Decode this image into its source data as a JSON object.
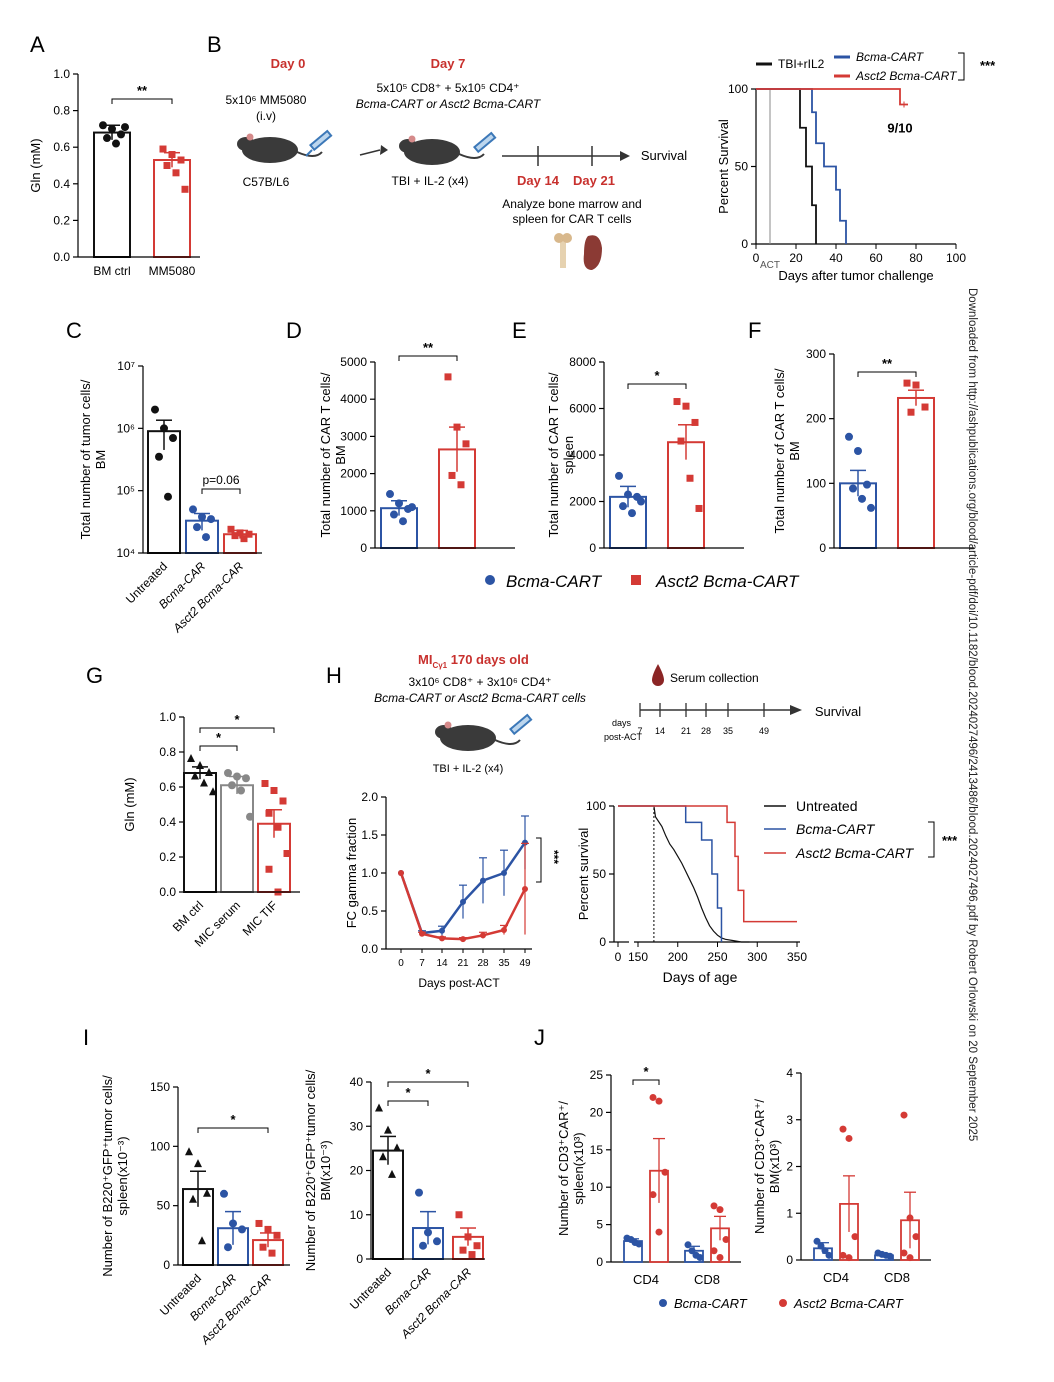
{
  "colors": {
    "black": "#111111",
    "blue": "#2c54a4",
    "red": "#d43a35",
    "grey": "#888888"
  },
  "panels": {
    "A": "A",
    "B": "B",
    "C": "C",
    "D": "D",
    "E": "E",
    "F": "F",
    "G": "G",
    "H": "H",
    "I": "I",
    "J": "J"
  },
  "side_note": "Downloaded from http://ashpublications.org/blood/article-pdf/doi/10.1182/blood.2024027496/2413486/blood.2024027496.pdf by Robert Orlowski on 20 September 2025",
  "schematic_B": {
    "day0": "Day 0",
    "day0_dose": "5x10⁶ MM5080",
    "day0_route": "(i.v)",
    "strain": "C57B/L6",
    "day7": "Day 7",
    "day7_line1": "5x10⁵ CD8⁺ + 5x10⁵ CD4⁺",
    "day7_line2": "Bcma-CART or Asct2 Bcma-CART",
    "treatment": "TBI + IL-2 (x4)",
    "day14": "Day 14",
    "day21": "Day 21",
    "survival": "Survival",
    "analyze1": "Analyze bone marrow and",
    "analyze2": "spleen for CAR T cells"
  },
  "schematic_H": {
    "title_main": "MI",
    "title_sub": "Cγ1",
    "title_rest": " 170 days old",
    "line1": "3x10⁶ CD8⁺ + 3x10⁶ CD4⁺",
    "line2": "Bcma-CART or Asct2 Bcma-CART cells",
    "treatment": "TBI + IL-2 (x4)",
    "serum": "Serum collection",
    "days_label1": "days",
    "days_label2": "post-ACT",
    "timeline_days": [
      "7",
      "14",
      "21",
      "28",
      "35",
      "49"
    ],
    "survival": "Survival"
  },
  "legend_CDEF": [
    "Bcma-CART",
    "Asct2 Bcma-CART"
  ],
  "legend_J": [
    "Bcma-CART",
    "Asct2 Bcma-CART"
  ],
  "chart_data": [
    {
      "id": "A",
      "type": "bar",
      "categories": [
        "BM ctrl",
        "MM5080"
      ],
      "values": [
        0.68,
        0.53
      ],
      "ylabel": "Gln (mM)",
      "ylim": [
        0,
        1.0
      ],
      "yticks": [
        "0.0",
        "0.2",
        "0.4",
        "0.6",
        "0.8",
        "1.0"
      ],
      "errors": [
        0.04,
        0.04
      ],
      "points": [
        [
          0.72,
          0.7,
          0.67,
          0.65,
          0.62,
          0.71
        ],
        [
          0.59,
          0.56,
          0.53,
          0.5,
          0.46,
          0.37
        ]
      ],
      "annotations": [
        "**"
      ]
    },
    {
      "id": "B",
      "type": "line",
      "title": "",
      "xlabel": "Days after tumor challenge",
      "ylabel": "Percent Survival",
      "xlim": [
        0,
        100
      ],
      "ylim": [
        0,
        100
      ],
      "xticks": [
        "0",
        "20",
        "40",
        "60",
        "80",
        "100"
      ],
      "yticks": [
        "0",
        "50",
        "100"
      ],
      "act_label": "ACT",
      "series": [
        {
          "name": "TBI+rIL2",
          "x": [
            0,
            22,
            22,
            25,
            25,
            28,
            28,
            30,
            30
          ],
          "y": [
            100,
            100,
            75,
            75,
            50,
            50,
            25,
            25,
            0
          ]
        },
        {
          "name": "Bcma-CART",
          "x": [
            0,
            28,
            28,
            30,
            30,
            34,
            34,
            40,
            40,
            42,
            42,
            45,
            45
          ],
          "y": [
            100,
            100,
            85,
            85,
            65,
            65,
            50,
            50,
            35,
            35,
            15,
            15,
            0
          ]
        },
        {
          "name": "Asct2 Bcma-CART",
          "x": [
            0,
            72,
            72,
            76
          ],
          "y": [
            100,
            100,
            90,
            90
          ]
        }
      ],
      "annotations": [
        "***",
        "9/10"
      ]
    },
    {
      "id": "C",
      "type": "bar",
      "categories": [
        "Untreated",
        "Bcma-CAR",
        "Asct2 Bcma-CAR"
      ],
      "values": [
        900000,
        33000,
        20000
      ],
      "ylabel": "Total number of tumor cells/ BM",
      "yscale": "log",
      "ylim": [
        10000,
        10000000
      ],
      "yticks": [
        "10⁴",
        "10⁵",
        "10⁶",
        "10⁷"
      ],
      "errors": [
        450000,
        10000,
        3000
      ],
      "points": [
        [
          2000000,
          1000000,
          700000,
          350000,
          80000
        ],
        [
          50000,
          38000,
          35000,
          26000,
          18000
        ],
        [
          24000,
          21000,
          20000,
          19000,
          17000
        ]
      ],
      "annotations": [
        "p=0.06"
      ]
    },
    {
      "id": "D",
      "type": "bar",
      "categories": [
        "Bcma-CART",
        "Asct2 Bcma-CART"
      ],
      "values": [
        1070,
        2650
      ],
      "ylabel": "Total number of CAR T cells/ BM",
      "ylim": [
        0,
        5000
      ],
      "yticks": [
        "0",
        "1000",
        "2000",
        "3000",
        "4000",
        "5000"
      ],
      "errors": [
        200,
        600
      ],
      "points": [
        [
          1450,
          1200,
          1050,
          900,
          720,
          1100
        ],
        [
          4600,
          3250,
          2800,
          1950,
          1700
        ]
      ],
      "annotations": [
        "**"
      ]
    },
    {
      "id": "E",
      "type": "bar",
      "categories": [
        "Bcma-CART",
        "Asct2 Bcma-CART"
      ],
      "values": [
        2200,
        4550
      ],
      "ylabel": "Total number of CAR T cells/ spleen",
      "ylim": [
        0,
        8000
      ],
      "yticks": [
        "0",
        "2000",
        "4000",
        "6000",
        "8000"
      ],
      "errors": [
        450,
        750
      ],
      "points": [
        [
          3100,
          2300,
          2200,
          1800,
          1500,
          2000
        ],
        [
          6300,
          6100,
          5400,
          4600,
          3000,
          1700
        ]
      ],
      "annotations": [
        "*"
      ]
    },
    {
      "id": "F",
      "type": "bar",
      "categories": [
        "Bcma-CART",
        "Asct2 Bcma-CART"
      ],
      "values": [
        100,
        232
      ],
      "ylabel": "Total number of CAR T cells/ BM",
      "ylim": [
        0,
        300
      ],
      "yticks": [
        "0",
        "100",
        "200",
        "300"
      ],
      "errors": [
        20,
        12
      ],
      "points": [
        [
          172,
          150,
          98,
          92,
          76,
          62
        ],
        [
          255,
          252,
          218,
          210
        ]
      ],
      "annotations": [
        "**"
      ]
    },
    {
      "id": "G",
      "type": "bar",
      "categories": [
        "BM ctrl",
        "MIC serum",
        "MIC TIF"
      ],
      "values": [
        0.68,
        0.61,
        0.39
      ],
      "ylabel": "Gln (mM)",
      "ylim": [
        0,
        1.0
      ],
      "yticks": [
        "0.0",
        "0.2",
        "0.4",
        "0.6",
        "0.8",
        "1.0"
      ],
      "errors": [
        0.035,
        0.05,
        0.08
      ],
      "points": [
        [
          0.76,
          0.72,
          0.68,
          0.66,
          0.62,
          0.57
        ],
        [
          0.68,
          0.66,
          0.65,
          0.61,
          0.58,
          0.43
        ],
        [
          0.62,
          0.58,
          0.52,
          0.45,
          0.37,
          0.22,
          0.13,
          0.0
        ]
      ],
      "annotations": [
        "*",
        "*"
      ]
    },
    {
      "id": "H-FC",
      "type": "line",
      "xlabel": "Days post-ACT",
      "ylabel": "FC gamma fraction",
      "categories": [
        "0",
        "7",
        "14",
        "21",
        "28",
        "35",
        "49"
      ],
      "ylim": [
        0,
        2.0
      ],
      "yticks": [
        "0.0",
        "0.5",
        "1.0",
        "1.5",
        "2.0"
      ],
      "series": [
        {
          "name": "Bcma-CART",
          "values": [
            1.0,
            0.21,
            0.24,
            0.62,
            0.9,
            1.0,
            1.4
          ],
          "errors": [
            0,
            0.03,
            0.06,
            0.22,
            0.3,
            0.3,
            0.35
          ]
        },
        {
          "name": "Asct2 Bcma-CART",
          "values": [
            1.0,
            0.2,
            0.14,
            0.13,
            0.18,
            0.25,
            0.79
          ],
          "errors": [
            0,
            0.02,
            0.02,
            0.02,
            0.04,
            0.06,
            0.6
          ]
        }
      ],
      "annotations": [
        "***"
      ]
    },
    {
      "id": "H-surv",
      "type": "line",
      "xlabel": "Days of age",
      "ylabel": "Percent survival",
      "xticks": [
        "0",
        "150",
        "200",
        "250",
        "300",
        "350"
      ],
      "yticks": [
        "0",
        "50",
        "100"
      ],
      "ylim": [
        0,
        100
      ],
      "series": [
        {
          "name": "Untreated",
          "x": [
            0,
            170,
            172,
            180,
            185,
            190,
            195,
            200,
            205,
            210,
            215,
            220,
            225,
            230,
            235,
            240,
            245,
            250,
            255,
            260,
            270,
            280,
            290
          ],
          "y": [
            100,
            100,
            92,
            85,
            78,
            72,
            68,
            63,
            58,
            52,
            46,
            40,
            33,
            25,
            18,
            12,
            8,
            5,
            3,
            2,
            1,
            0,
            0
          ]
        },
        {
          "name": "Bcma-CART",
          "x": [
            0,
            210,
            210,
            230,
            230,
            243,
            243,
            250,
            250,
            255,
            255
          ],
          "y": [
            100,
            100,
            88,
            88,
            75,
            75,
            50,
            50,
            25,
            25,
            0
          ]
        },
        {
          "name": "Asct2 Bcma-CART",
          "x": [
            0,
            262,
            262,
            272,
            272,
            276,
            276,
            283,
            283,
            300,
            300,
            350
          ],
          "y": [
            100,
            100,
            88,
            88,
            63,
            63,
            38,
            38,
            15,
            15,
            15,
            15
          ]
        }
      ],
      "legend": [
        "Untreated",
        "Bcma-CART",
        "Asct2 Bcma-CART"
      ],
      "annotations": [
        "***"
      ]
    },
    {
      "id": "I-spleen",
      "type": "bar",
      "categories": [
        "Untreated",
        "Bcma-CAR",
        "Asct2 Bcma-CAR"
      ],
      "values": [
        64,
        31,
        21
      ],
      "ylabel": "Number of B220⁺GFP⁺tumor cells/ spleen(x10⁻³)",
      "ylim": [
        0,
        150
      ],
      "yticks": [
        "0",
        "50",
        "100",
        "150"
      ],
      "errors": [
        15,
        14,
        6
      ],
      "points": [
        [
          95,
          85,
          60,
          55,
          20
        ],
        [
          60,
          35,
          30,
          15
        ],
        [
          35,
          30,
          25,
          15,
          10
        ]
      ],
      "annotations": [
        "*"
      ]
    },
    {
      "id": "I-BM",
      "type": "bar",
      "categories": [
        "Untreated",
        "Bcma-CAR",
        "Asct2 Bcma-CAR"
      ],
      "values": [
        24.5,
        7,
        5
      ],
      "ylabel": "Number of B220⁺GFP⁺tumor cells/ BM(x10⁻³)",
      "ylim": [
        0,
        40
      ],
      "yticks": [
        "0",
        "10",
        "20",
        "30",
        "40"
      ],
      "errors": [
        3.2,
        3.7,
        2.0
      ],
      "points": [
        [
          34,
          29,
          25,
          23,
          19
        ],
        [
          15,
          6,
          4,
          3
        ],
        [
          10,
          5,
          3,
          2,
          1
        ]
      ],
      "annotations": [
        "*",
        "*"
      ]
    },
    {
      "id": "J-spleen",
      "type": "bar",
      "categories": [
        "CD4",
        "CD8"
      ],
      "series": [
        {
          "name": "Bcma-CART",
          "values": [
            2.8,
            1.5
          ],
          "errors": [
            0.3,
            0.6
          ]
        },
        {
          "name": "Asct2 Bcma-CART",
          "values": [
            12.2,
            4.5
          ],
          "errors": [
            4.3,
            1.6
          ]
        }
      ],
      "ylabel": "Number of CD3⁺CAR⁺/ spleen(x10³)",
      "ylim": [
        0,
        25
      ],
      "yticks": [
        "0",
        "5",
        "10",
        "15",
        "20",
        "25"
      ],
      "points": [
        [
          [
            3.2,
            3.0,
            2.6,
            2.4
          ],
          [
            2.3,
            1.5,
            0.9,
            0.6
          ]
        ],
        [
          [
            22,
            21.5,
            12,
            9,
            4
          ]
        ],
        [
          [
            7.5,
            7,
            3,
            1.5,
            0.6
          ]
        ]
      ],
      "annotations": [
        "*"
      ]
    },
    {
      "id": "J-BM",
      "type": "bar",
      "categories": [
        "CD4",
        "CD8"
      ],
      "series": [
        {
          "name": "Bcma-CART",
          "values": [
            0.25,
            0.1
          ],
          "errors": [
            0.12,
            0.03
          ]
        },
        {
          "name": "Asct2 Bcma-CART",
          "values": [
            1.2,
            0.85
          ],
          "errors": [
            0.6,
            0.6
          ]
        }
      ],
      "ylabel": "Number of CD3⁺CAR⁺/ BM(x10³)",
      "ylim": [
        0,
        4
      ],
      "yticks": [
        "0",
        "1",
        "2",
        "3",
        "4"
      ],
      "points": [
        [
          [
            0.4,
            0.3,
            0.2,
            0.1
          ],
          [
            0.15,
            0.12,
            0.1,
            0.08
          ]
        ],
        [
          [
            2.8,
            2.6,
            0.5,
            0.1,
            0.05
          ]
        ],
        [
          [
            3.1,
            0.9,
            0.5,
            0.15,
            0.05
          ]
        ]
      ]
    }
  ]
}
